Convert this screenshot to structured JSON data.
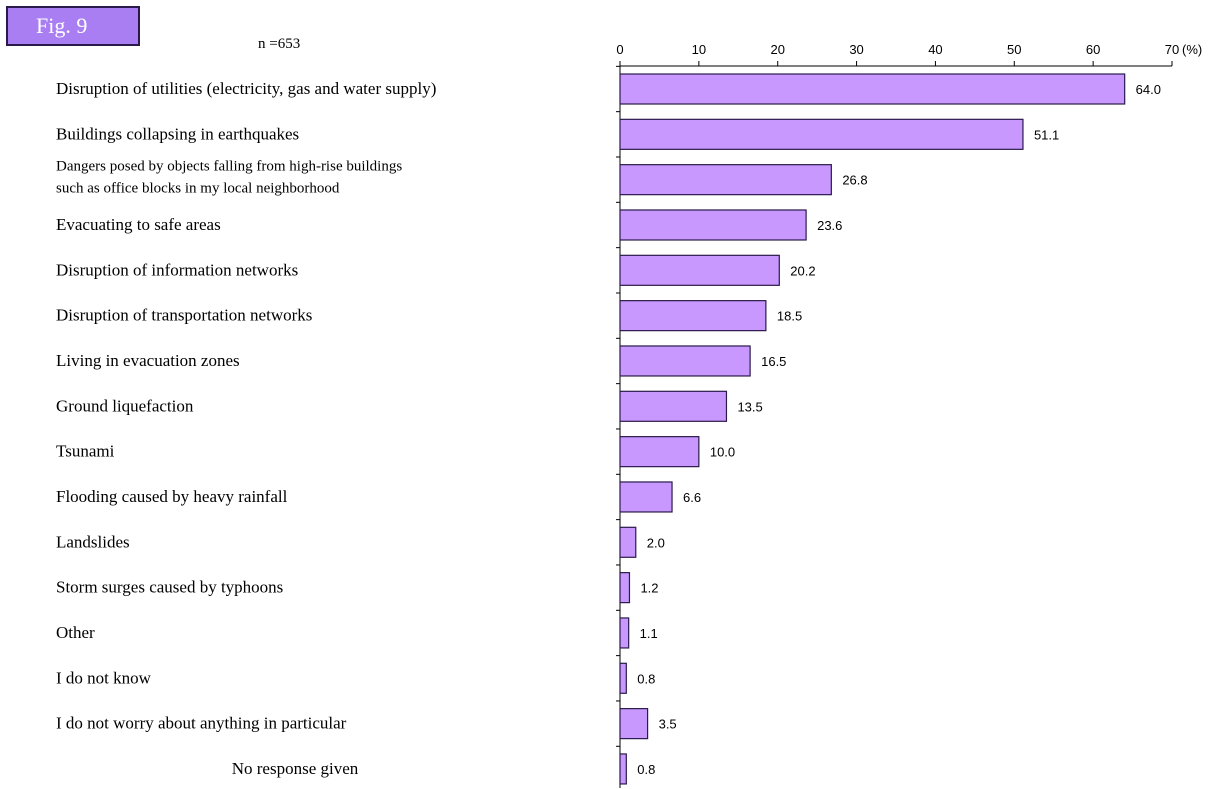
{
  "figure": {
    "badge": "Fig. 9",
    "sample": "n =653"
  },
  "colors": {
    "bar_fill": "#c898ff",
    "bar_stroke": "#2a1a4a",
    "badge": "#a97ef2"
  },
  "chart_data": {
    "type": "bar",
    "orientation": "horizontal",
    "xlim": [
      0,
      70
    ],
    "ticks": [
      0,
      10,
      20,
      30,
      40,
      50,
      60,
      70
    ],
    "unit": "(%)",
    "grid": false,
    "categories": [
      [
        "Disruption of utilities (electricity, gas and water supply)"
      ],
      [
        "Buildings collapsing in earthquakes"
      ],
      [
        "Dangers posed by objects falling from high-rise buildings",
        "such as office blocks in my local neighborhood"
      ],
      [
        "Evacuating to safe areas"
      ],
      [
        "Disruption of information networks"
      ],
      [
        "Disruption of transportation networks"
      ],
      [
        "Living in evacuation zones"
      ],
      [
        "Ground liquefaction"
      ],
      [
        "Tsunami"
      ],
      [
        "Flooding caused by heavy rainfall"
      ],
      [
        "Landslides"
      ],
      [
        "Storm surges caused by typhoons"
      ],
      [
        "Other"
      ],
      [
        "I do not know"
      ],
      [
        "I do not worry about anything in particular"
      ],
      [
        "No response given"
      ]
    ],
    "values": [
      64.0,
      51.1,
      26.8,
      23.6,
      20.2,
      18.5,
      16.5,
      13.5,
      10.0,
      6.6,
      2.0,
      1.2,
      1.1,
      0.8,
      3.5,
      0.8
    ],
    "labels": [
      "64.0",
      "51.1",
      "26.8",
      "23.6",
      "20.2",
      "18.5",
      "16.5",
      "13.5",
      "10.0",
      "6.6",
      "2.0",
      "1.2",
      "1.1",
      "0.8",
      "3.5",
      "0.8"
    ]
  }
}
